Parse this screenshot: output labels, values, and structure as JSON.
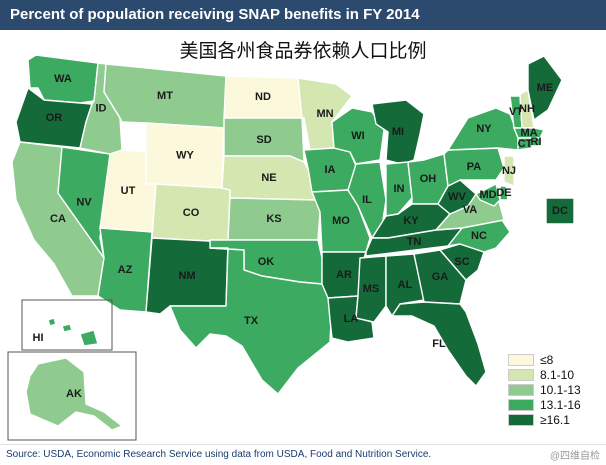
{
  "header": {
    "title": "Percent of population receiving SNAP benefits in FY 2014"
  },
  "subtitle": "美国各州食品券依赖人口比例",
  "legend": {
    "items": [
      {
        "label": "≤8",
        "color": "#fbf8db"
      },
      {
        "label": "8.1-10",
        "color": "#d4e7b0"
      },
      {
        "label": "10.1-13",
        "color": "#8fcb8f"
      },
      {
        "label": "13.1-16",
        "color": "#3caa60"
      },
      {
        "label": "≥16.1",
        "color": "#156a3a"
      }
    ]
  },
  "states": [
    {
      "code": "WA",
      "label": "WA",
      "class": 3
    },
    {
      "code": "OR",
      "label": "OR",
      "class": 4
    },
    {
      "code": "CA",
      "label": "CA",
      "class": 2
    },
    {
      "code": "NV",
      "label": "NV",
      "class": 3
    },
    {
      "code": "ID",
      "label": "ID",
      "class": 2
    },
    {
      "code": "MT",
      "label": "MT",
      "class": 2
    },
    {
      "code": "WY",
      "label": "WY",
      "class": 0
    },
    {
      "code": "UT",
      "label": "UT",
      "class": 0
    },
    {
      "code": "AZ",
      "label": "AZ",
      "class": 3
    },
    {
      "code": "CO",
      "label": "CO",
      "class": 1
    },
    {
      "code": "NM",
      "label": "NM",
      "class": 4
    },
    {
      "code": "ND",
      "label": "ND",
      "class": 0
    },
    {
      "code": "SD",
      "label": "SD",
      "class": 2
    },
    {
      "code": "NE",
      "label": "NE",
      "class": 1
    },
    {
      "code": "KS",
      "label": "KS",
      "class": 2
    },
    {
      "code": "OK",
      "label": "OK",
      "class": 3
    },
    {
      "code": "TX",
      "label": "TX",
      "class": 3
    },
    {
      "code": "MN",
      "label": "MN",
      "class": 1
    },
    {
      "code": "IA",
      "label": "IA",
      "class": 3
    },
    {
      "code": "MO",
      "label": "MO",
      "class": 3
    },
    {
      "code": "AR",
      "label": "AR",
      "class": 4
    },
    {
      "code": "LA",
      "label": "LA",
      "class": 4
    },
    {
      "code": "WI",
      "label": "WI",
      "class": 3
    },
    {
      "code": "IL",
      "label": "IL",
      "class": 3
    },
    {
      "code": "MI",
      "label": "MI",
      "class": 4
    },
    {
      "code": "IN",
      "label": "IN",
      "class": 3
    },
    {
      "code": "OH",
      "label": "OH",
      "class": 3
    },
    {
      "code": "KY",
      "label": "KY",
      "class": 4
    },
    {
      "code": "TN",
      "label": "TN",
      "class": 4
    },
    {
      "code": "MS",
      "label": "MS",
      "class": 4
    },
    {
      "code": "AL",
      "label": "AL",
      "class": 4
    },
    {
      "code": "GA",
      "label": "GA",
      "class": 4
    },
    {
      "code": "FL",
      "label": "FL",
      "class": 4
    },
    {
      "code": "SC",
      "label": "SC",
      "class": 4
    },
    {
      "code": "NC",
      "label": "NC",
      "class": 3
    },
    {
      "code": "VA",
      "label": "VA",
      "class": 2
    },
    {
      "code": "WV",
      "label": "WV",
      "class": 4
    },
    {
      "code": "PA",
      "label": "PA",
      "class": 3
    },
    {
      "code": "NY",
      "label": "NY",
      "class": 3
    },
    {
      "code": "VT",
      "label": "VT",
      "class": 3
    },
    {
      "code": "NH",
      "label": "NH",
      "class": 1
    },
    {
      "code": "ME",
      "label": "ME",
      "class": 4
    },
    {
      "code": "MA",
      "label": "MA",
      "class": 3
    },
    {
      "code": "RI",
      "label": "RI",
      "class": 3
    },
    {
      "code": "CT",
      "label": "CT",
      "class": 3
    },
    {
      "code": "NJ",
      "label": "NJ",
      "class": 1
    },
    {
      "code": "DE",
      "label": "DE",
      "class": 3
    },
    {
      "code": "MD",
      "label": "MD",
      "class": 3
    },
    {
      "code": "DC",
      "label": "DC",
      "class": 4
    },
    {
      "code": "HI",
      "label": "HI",
      "class": 3
    },
    {
      "code": "AK",
      "label": "AK",
      "class": 2
    }
  ],
  "source": "Source: USDA, Economic Research Service using data from USDA, Food and Nutrition Service.",
  "watermark": "@四维自检"
}
